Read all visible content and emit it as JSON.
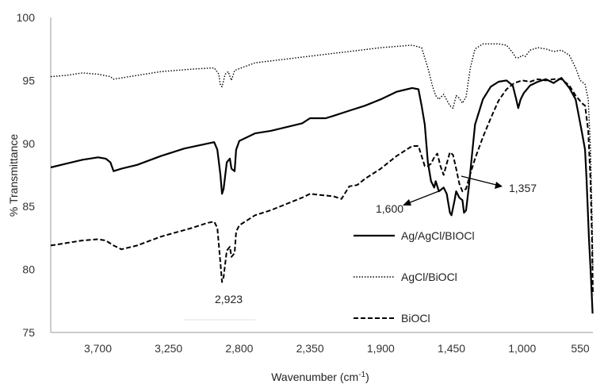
{
  "chart_data": {
    "type": "line",
    "title": "",
    "xlabel": "Wavenumber (cm",
    "xlabel_sup": "-1",
    "xlabel_close": ")",
    "ylabel": "% Transmittance",
    "xlim": [
      4000,
      550
    ],
    "x_reversed": true,
    "ylim": [
      75,
      100
    ],
    "x_ticks": [
      {
        "value": 3700,
        "label": "3,700"
      },
      {
        "value": 3250,
        "label": "3,250"
      },
      {
        "value": 2800,
        "label": "2,800"
      },
      {
        "value": 2350,
        "label": "2,350"
      },
      {
        "value": 1900,
        "label": "1,900"
      },
      {
        "value": 1450,
        "label": "1,450"
      },
      {
        "value": 1000,
        "label": "1,000"
      },
      {
        "value": 550,
        "label": "550"
      }
    ],
    "y_ticks": [
      {
        "value": 75,
        "label": "75"
      },
      {
        "value": 80,
        "label": "80"
      },
      {
        "value": 85,
        "label": "85"
      },
      {
        "value": 90,
        "label": "90"
      },
      {
        "value": 95,
        "label": "95"
      },
      {
        "value": 100,
        "label": "100"
      }
    ],
    "grid": false,
    "legend_position": "bottom-right",
    "series": [
      {
        "name": "Ag/AgCl/BIOCl",
        "style": "solid",
        "color": "#000000",
        "points": [
          [
            4000,
            88.1
          ],
          [
            3900,
            88.4
          ],
          [
            3800,
            88.7
          ],
          [
            3700,
            88.9
          ],
          [
            3650,
            88.8
          ],
          [
            3620,
            88.5
          ],
          [
            3600,
            87.8
          ],
          [
            3550,
            88.0
          ],
          [
            3450,
            88.3
          ],
          [
            3300,
            89.0
          ],
          [
            3150,
            89.6
          ],
          [
            3000,
            90.0
          ],
          [
            2960,
            90.1
          ],
          [
            2940,
            89.5
          ],
          [
            2920,
            87.5
          ],
          [
            2910,
            86.0
          ],
          [
            2900,
            86.4
          ],
          [
            2880,
            88.5
          ],
          [
            2860,
            88.8
          ],
          [
            2850,
            88.0
          ],
          [
            2830,
            87.8
          ],
          [
            2820,
            89.5
          ],
          [
            2800,
            90.2
          ],
          [
            2700,
            90.8
          ],
          [
            2600,
            91.0
          ],
          [
            2500,
            91.3
          ],
          [
            2400,
            91.6
          ],
          [
            2350,
            92.0
          ],
          [
            2250,
            92.0
          ],
          [
            2200,
            92.2
          ],
          [
            2100,
            92.6
          ],
          [
            2000,
            93.0
          ],
          [
            1900,
            93.5
          ],
          [
            1800,
            94.1
          ],
          [
            1700,
            94.4
          ],
          [
            1660,
            94.3
          ],
          [
            1640,
            93.0
          ],
          [
            1620,
            91.5
          ],
          [
            1600,
            88.5
          ],
          [
            1580,
            87.0
          ],
          [
            1560,
            86.5
          ],
          [
            1550,
            87.0
          ],
          [
            1530,
            86.2
          ],
          [
            1500,
            86.5
          ],
          [
            1480,
            86.0
          ],
          [
            1460,
            84.5
          ],
          [
            1450,
            84.3
          ],
          [
            1430,
            85.5
          ],
          [
            1420,
            86.2
          ],
          [
            1400,
            85.7
          ],
          [
            1380,
            85.5
          ],
          [
            1370,
            84.5
          ],
          [
            1357,
            84.7
          ],
          [
            1340,
            86.5
          ],
          [
            1320,
            89.0
          ],
          [
            1300,
            91.5
          ],
          [
            1250,
            93.5
          ],
          [
            1200,
            94.5
          ],
          [
            1150,
            94.9
          ],
          [
            1100,
            95.0
          ],
          [
            1060,
            94.6
          ],
          [
            1040,
            93.6
          ],
          [
            1025,
            92.8
          ],
          [
            1010,
            93.5
          ],
          [
            990,
            94.0
          ],
          [
            950,
            94.6
          ],
          [
            900,
            94.9
          ],
          [
            850,
            95.1
          ],
          [
            800,
            94.8
          ],
          [
            750,
            95.2
          ],
          [
            700,
            94.4
          ],
          [
            660,
            93.5
          ],
          [
            640,
            92.2
          ],
          [
            620,
            90.9
          ],
          [
            600,
            89.5
          ],
          [
            590,
            87.0
          ],
          [
            575,
            82.5
          ],
          [
            560,
            78.8
          ],
          [
            552,
            76.5
          ]
        ]
      },
      {
        "name": "AgCl/BiOCl",
        "style": "dotted",
        "color": "#000000",
        "points": [
          [
            4000,
            95.3
          ],
          [
            3900,
            95.4
          ],
          [
            3800,
            95.6
          ],
          [
            3700,
            95.5
          ],
          [
            3620,
            95.3
          ],
          [
            3600,
            95.1
          ],
          [
            3500,
            95.3
          ],
          [
            3300,
            95.7
          ],
          [
            3100,
            95.9
          ],
          [
            2960,
            96.0
          ],
          [
            2930,
            95.5
          ],
          [
            2920,
            94.6
          ],
          [
            2910,
            94.5
          ],
          [
            2890,
            95.5
          ],
          [
            2870,
            95.7
          ],
          [
            2850,
            95.0
          ],
          [
            2830,
            95.8
          ],
          [
            2700,
            96.4
          ],
          [
            2500,
            96.7
          ],
          [
            2300,
            97.0
          ],
          [
            2100,
            97.3
          ],
          [
            1900,
            97.6
          ],
          [
            1700,
            97.8
          ],
          [
            1640,
            97.6
          ],
          [
            1600,
            96.0
          ],
          [
            1570,
            94.5
          ],
          [
            1550,
            93.8
          ],
          [
            1530,
            93.5
          ],
          [
            1500,
            93.9
          ],
          [
            1460,
            93.0
          ],
          [
            1440,
            92.8
          ],
          [
            1420,
            93.8
          ],
          [
            1400,
            93.6
          ],
          [
            1380,
            93.2
          ],
          [
            1357,
            93.7
          ],
          [
            1330,
            96.0
          ],
          [
            1300,
            97.5
          ],
          [
            1250,
            97.9
          ],
          [
            1150,
            97.9
          ],
          [
            1100,
            97.8
          ],
          [
            1060,
            97.2
          ],
          [
            1040,
            96.8
          ],
          [
            1020,
            96.8
          ],
          [
            1000,
            97.0
          ],
          [
            980,
            96.9
          ],
          [
            950,
            97.4
          ],
          [
            900,
            97.6
          ],
          [
            850,
            97.5
          ],
          [
            800,
            97.3
          ],
          [
            750,
            97.4
          ],
          [
            700,
            97.0
          ],
          [
            660,
            96.0
          ],
          [
            630,
            95.0
          ],
          [
            600,
            94.7
          ],
          [
            580,
            93.5
          ],
          [
            565,
            89.5
          ],
          [
            555,
            84.0
          ],
          [
            550,
            80.0
          ]
        ]
      },
      {
        "name": "BiOCl",
        "style": "dashed",
        "color": "#000000",
        "points": [
          [
            4000,
            81.9
          ],
          [
            3900,
            82.1
          ],
          [
            3800,
            82.3
          ],
          [
            3700,
            82.4
          ],
          [
            3650,
            82.3
          ],
          [
            3600,
            81.9
          ],
          [
            3550,
            81.6
          ],
          [
            3450,
            81.9
          ],
          [
            3300,
            82.6
          ],
          [
            3100,
            83.3
          ],
          [
            3000,
            83.7
          ],
          [
            2960,
            83.8
          ],
          [
            2940,
            83.3
          ],
          [
            2920,
            80.5
          ],
          [
            2910,
            79.0
          ],
          [
            2900,
            79.4
          ],
          [
            2880,
            81.5
          ],
          [
            2860,
            81.8
          ],
          [
            2850,
            81.0
          ],
          [
            2830,
            81.3
          ],
          [
            2820,
            83.0
          ],
          [
            2800,
            83.5
          ],
          [
            2700,
            84.3
          ],
          [
            2600,
            84.7
          ],
          [
            2500,
            85.2
          ],
          [
            2400,
            85.7
          ],
          [
            2350,
            86.0
          ],
          [
            2200,
            85.8
          ],
          [
            2150,
            85.6
          ],
          [
            2100,
            86.6
          ],
          [
            2050,
            86.7
          ],
          [
            2000,
            87.2
          ],
          [
            1900,
            88.0
          ],
          [
            1800,
            89.0
          ],
          [
            1700,
            89.8
          ],
          [
            1660,
            89.8
          ],
          [
            1640,
            89.0
          ],
          [
            1620,
            88.2
          ],
          [
            1600,
            88.2
          ],
          [
            1580,
            88.4
          ],
          [
            1560,
            88.9
          ],
          [
            1540,
            89.2
          ],
          [
            1520,
            88.2
          ],
          [
            1500,
            87.5
          ],
          [
            1480,
            88.4
          ],
          [
            1460,
            89.3
          ],
          [
            1440,
            89.1
          ],
          [
            1420,
            88.0
          ],
          [
            1400,
            86.8
          ],
          [
            1380,
            86.2
          ],
          [
            1357,
            86.4
          ],
          [
            1330,
            87.6
          ],
          [
            1300,
            88.8
          ],
          [
            1250,
            90.5
          ],
          [
            1200,
            92.0
          ],
          [
            1150,
            93.4
          ],
          [
            1100,
            94.3
          ],
          [
            1050,
            94.8
          ],
          [
            1000,
            95.0
          ],
          [
            950,
            94.9
          ],
          [
            900,
            95.1
          ],
          [
            850,
            95.0
          ],
          [
            800,
            95.1
          ],
          [
            750,
            95.1
          ],
          [
            700,
            94.6
          ],
          [
            660,
            93.8
          ],
          [
            640,
            93.5
          ],
          [
            620,
            93.2
          ],
          [
            600,
            93.0
          ],
          [
            580,
            91.0
          ],
          [
            565,
            87.0
          ],
          [
            555,
            82.0
          ],
          [
            550,
            78.0
          ]
        ]
      }
    ],
    "annotations": [
      {
        "label": "2,923"
      },
      {
        "label": "1,600"
      },
      {
        "label": "1,357"
      }
    ]
  }
}
